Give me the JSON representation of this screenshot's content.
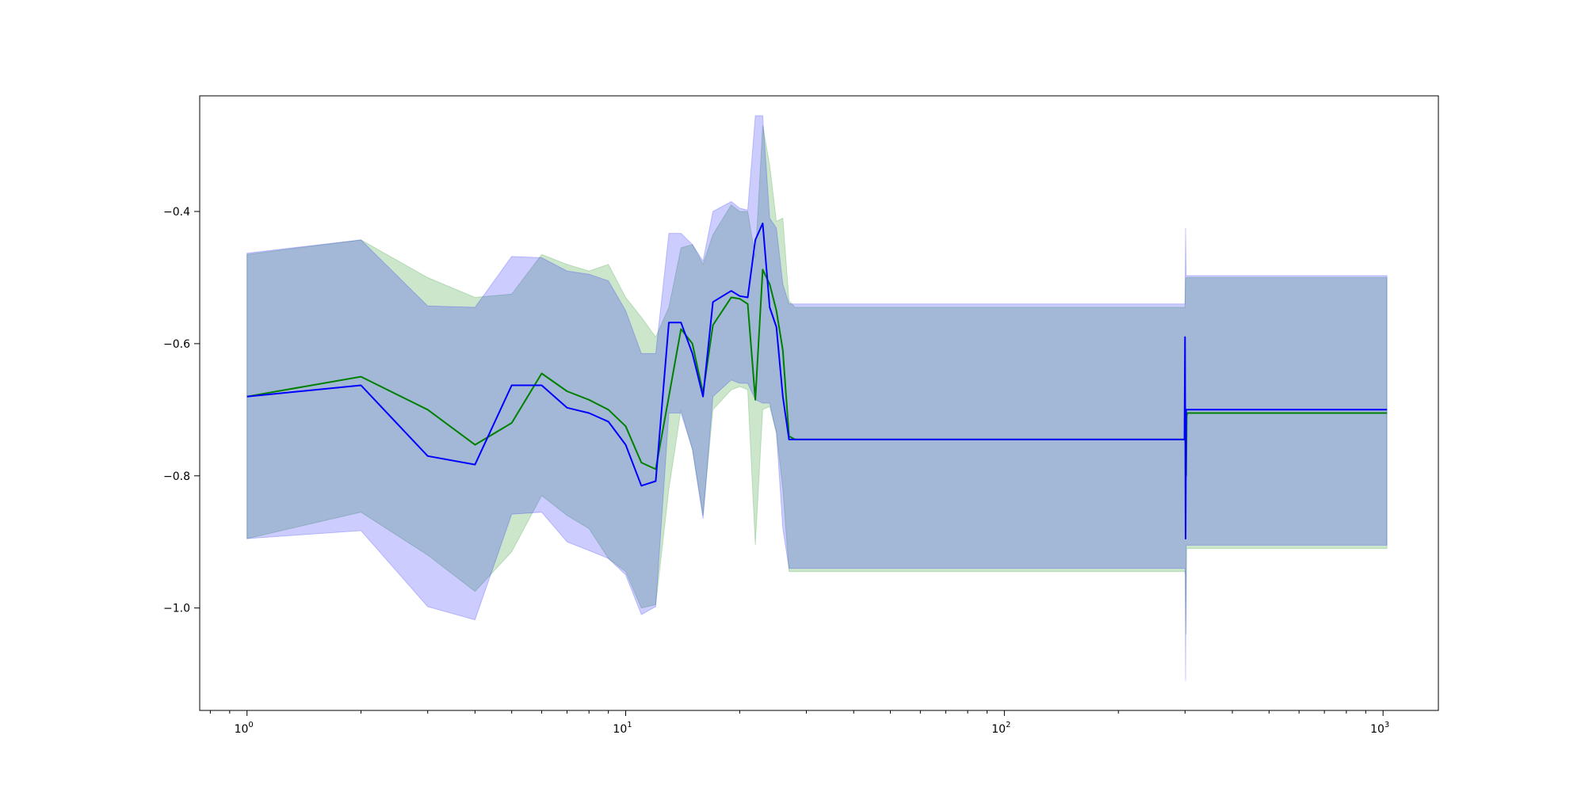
{
  "chart_data": {
    "type": "line",
    "title": "",
    "xlabel": "",
    "ylabel": "",
    "xscale": "log",
    "xlim": [
      0.75,
      1400
    ],
    "ylim": [
      -1.155,
      -0.225
    ],
    "grid": false,
    "legend": "none",
    "x_ticks": [
      {
        "value": 1,
        "base": "10",
        "exp": "0"
      },
      {
        "value": 10,
        "base": "10",
        "exp": "1"
      },
      {
        "value": 100,
        "base": "10",
        "exp": "2"
      },
      {
        "value": 1000,
        "base": "10",
        "exp": "3"
      }
    ],
    "y_ticks": [
      {
        "value": -1.0,
        "label": "−1.0"
      },
      {
        "value": -0.8,
        "label": "−0.8"
      },
      {
        "value": -0.6,
        "label": "−0.6"
      },
      {
        "value": -0.4,
        "label": "−0.4"
      }
    ],
    "series": [
      {
        "color": "#008000",
        "band_color": "#008000",
        "band_opacity": 0.2,
        "x": [
          1,
          2,
          3,
          4,
          5,
          6,
          7,
          8,
          9,
          10,
          11,
          12,
          13,
          14,
          15,
          16,
          17,
          19,
          20,
          21,
          22,
          23,
          24,
          25,
          26,
          27,
          28,
          30,
          50,
          100,
          200,
          299,
          300,
          301,
          302,
          303,
          304,
          305,
          350,
          500,
          1024
        ],
        "y": [
          -0.68,
          -0.65,
          -0.7,
          -0.753,
          -0.72,
          -0.645,
          -0.672,
          -0.685,
          -0.7,
          -0.725,
          -0.78,
          -0.79,
          -0.68,
          -0.578,
          -0.6,
          -0.675,
          -0.572,
          -0.53,
          -0.532,
          -0.54,
          -0.685,
          -0.488,
          -0.51,
          -0.55,
          -0.61,
          -0.74,
          -0.745,
          -0.745,
          -0.745,
          -0.745,
          -0.745,
          -0.745,
          -0.745,
          -0.75,
          -0.8,
          -0.71,
          -0.705,
          -0.705,
          -0.705,
          -0.705,
          -0.705
        ],
        "lower": [
          -0.895,
          -0.855,
          -0.92,
          -0.975,
          -0.915,
          -0.83,
          -0.86,
          -0.88,
          -0.925,
          -0.945,
          -1.0,
          -0.995,
          -0.82,
          -0.7,
          -0.76,
          -0.86,
          -0.7,
          -0.67,
          -0.665,
          -0.67,
          -0.905,
          -0.7,
          -0.695,
          -0.735,
          -0.82,
          -0.945,
          -0.945,
          -0.945,
          -0.945,
          -0.945,
          -0.945,
          -0.945,
          -0.945,
          -0.95,
          -1.04,
          -0.91,
          -0.91,
          -0.91,
          -0.91,
          -0.91,
          -0.91
        ],
        "upper": [
          -0.465,
          -0.443,
          -0.5,
          -0.53,
          -0.525,
          -0.465,
          -0.48,
          -0.49,
          -0.48,
          -0.53,
          -0.56,
          -0.59,
          -0.545,
          -0.455,
          -0.45,
          -0.48,
          -0.435,
          -0.39,
          -0.4,
          -0.4,
          -0.47,
          -0.27,
          -0.33,
          -0.415,
          -0.41,
          -0.535,
          -0.545,
          -0.545,
          -0.545,
          -0.545,
          -0.545,
          -0.545,
          -0.545,
          -0.5,
          -0.5,
          -0.5,
          -0.5,
          -0.5,
          -0.5,
          -0.5,
          -0.5
        ]
      },
      {
        "color": "#0000ff",
        "band_color": "#0000ff",
        "band_opacity": 0.2,
        "x": [
          1,
          2,
          3,
          4,
          5,
          6,
          7,
          8,
          9,
          10,
          11,
          12,
          13,
          14,
          15,
          16,
          17,
          19,
          20,
          21,
          22,
          23,
          24,
          25,
          26,
          27,
          28,
          30,
          50,
          100,
          200,
          299,
          300,
          301,
          302,
          303,
          304,
          305,
          350,
          500,
          1024
        ],
        "y": [
          -0.68,
          -0.663,
          -0.77,
          -0.783,
          -0.663,
          -0.663,
          -0.697,
          -0.705,
          -0.718,
          -0.753,
          -0.815,
          -0.808,
          -0.568,
          -0.568,
          -0.615,
          -0.68,
          -0.537,
          -0.52,
          -0.528,
          -0.53,
          -0.443,
          -0.418,
          -0.545,
          -0.575,
          -0.68,
          -0.745,
          -0.745,
          -0.745,
          -0.745,
          -0.745,
          -0.745,
          -0.745,
          -0.59,
          -0.895,
          -0.7,
          -0.7,
          -0.7,
          -0.7,
          -0.7,
          -0.7,
          -0.7
        ],
        "lower": [
          -0.895,
          -0.883,
          -0.998,
          -1.018,
          -0.858,
          -0.855,
          -0.9,
          -0.913,
          -0.925,
          -0.95,
          -1.01,
          -0.998,
          -0.705,
          -0.705,
          -0.76,
          -0.865,
          -0.68,
          -0.655,
          -0.66,
          -0.66,
          -0.685,
          -0.69,
          -0.69,
          -0.735,
          -0.88,
          -0.94,
          -0.94,
          -0.94,
          -0.94,
          -0.94,
          -0.94,
          -0.94,
          -0.94,
          -1.11,
          -0.905,
          -0.905,
          -0.905,
          -0.905,
          -0.905,
          -0.905,
          -0.905
        ],
        "upper": [
          -0.463,
          -0.443,
          -0.543,
          -0.545,
          -0.468,
          -0.47,
          -0.49,
          -0.495,
          -0.505,
          -0.55,
          -0.615,
          -0.615,
          -0.433,
          -0.433,
          -0.45,
          -0.475,
          -0.4,
          -0.385,
          -0.395,
          -0.398,
          -0.255,
          -0.255,
          -0.41,
          -0.425,
          -0.51,
          -0.54,
          -0.54,
          -0.54,
          -0.54,
          -0.54,
          -0.54,
          -0.54,
          -0.54,
          -0.425,
          -0.497,
          -0.497,
          -0.497,
          -0.497,
          -0.497,
          -0.497,
          -0.497
        ]
      }
    ]
  }
}
